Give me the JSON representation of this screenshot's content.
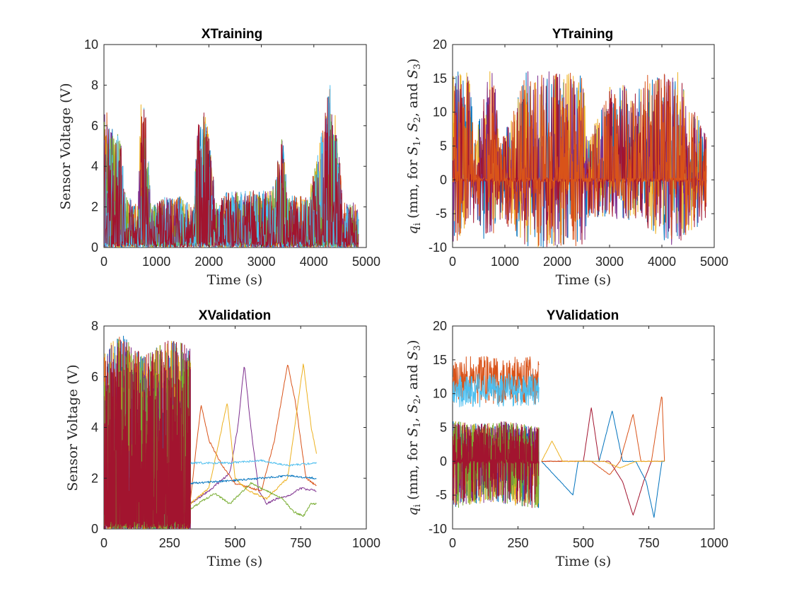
{
  "figure": {
    "background": "#ffffff"
  },
  "chart_data": [
    {
      "type": "line",
      "title": "XTraining",
      "xlabel": "Time (s)",
      "ylabel": "Sensor Voltage (V)",
      "xlim": [
        0,
        5000
      ],
      "ylim": [
        0,
        10
      ],
      "xticks": [
        0,
        1000,
        2000,
        3000,
        4000,
        5000
      ],
      "yticks": [
        0,
        2,
        4,
        6,
        8,
        10
      ],
      "grid": false,
      "legend": "none",
      "signal": {
        "xmin": 0,
        "xmax": 4850,
        "baseline": 0,
        "envelope": [
          [
            0,
            7.5
          ],
          [
            100,
            6.0
          ],
          [
            320,
            5.5
          ],
          [
            400,
            2.7
          ],
          [
            650,
            2.0
          ],
          [
            700,
            7.2
          ],
          [
            800,
            7.0
          ],
          [
            900,
            2.0
          ],
          [
            1150,
            2.5
          ],
          [
            1450,
            2.5
          ],
          [
            1700,
            2.0
          ],
          [
            1800,
            6.5
          ],
          [
            1950,
            6.8
          ],
          [
            2150,
            2.0
          ],
          [
            2300,
            2.7
          ],
          [
            2600,
            2.8
          ],
          [
            3200,
            2.8
          ],
          [
            3400,
            5.5
          ],
          [
            3500,
            2.6
          ],
          [
            3900,
            2.6
          ],
          [
            4100,
            5.0
          ],
          [
            4300,
            8.2
          ],
          [
            4450,
            6.0
          ],
          [
            4550,
            2.2
          ],
          [
            4850,
            2.2
          ]
        ]
      },
      "series": [
        {
          "color": "#0072BD"
        },
        {
          "color": "#D95319"
        },
        {
          "color": "#EDB120"
        },
        {
          "color": "#7E2F8E"
        },
        {
          "color": "#77AC30"
        },
        {
          "color": "#4DBEEE"
        },
        {
          "color": "#A2142F"
        }
      ]
    },
    {
      "type": "line",
      "title": "YTraining",
      "xlabel": "Time (s)",
      "ylabel_parts": [
        "q",
        "i",
        " (mm, for ",
        "S",
        "1",
        ", ",
        "S",
        "2",
        ", and ",
        "S",
        "3",
        ")"
      ],
      "xlim": [
        0,
        5000
      ],
      "ylim": [
        -10,
        20
      ],
      "xticks": [
        0,
        1000,
        2000,
        3000,
        4000,
        5000
      ],
      "yticks": [
        -10,
        -5,
        0,
        5,
        10,
        15,
        20
      ],
      "grid": false,
      "legend": "none",
      "signal": {
        "xmin": 0,
        "xmax": 4850,
        "baseline": 0,
        "envelope": [
          [
            0,
            16
          ],
          [
            350,
            16
          ],
          [
            400,
            5
          ],
          [
            700,
            16
          ],
          [
            800,
            16
          ],
          [
            900,
            5
          ],
          [
            1400,
            16
          ],
          [
            1600,
            16
          ],
          [
            2200,
            16
          ],
          [
            2500,
            16
          ],
          [
            2600,
            6
          ],
          [
            3000,
            14
          ],
          [
            3500,
            14
          ],
          [
            3800,
            16
          ],
          [
            4100,
            16
          ],
          [
            4300,
            16
          ],
          [
            4500,
            12
          ],
          [
            4850,
            7
          ]
        ],
        "low_envelope": [
          [
            0,
            -10
          ],
          [
            350,
            -6
          ],
          [
            700,
            -10
          ],
          [
            900,
            -6
          ],
          [
            1400,
            -10
          ],
          [
            2500,
            -10
          ],
          [
            2600,
            -6
          ],
          [
            3500,
            -6
          ],
          [
            4200,
            -10
          ],
          [
            4850,
            -6
          ]
        ]
      },
      "series": [
        {
          "color": "#0072BD"
        },
        {
          "color": "#EDB120"
        },
        {
          "color": "#7E2F8E"
        },
        {
          "color": "#A2142F"
        },
        {
          "color": "#D95319"
        }
      ]
    },
    {
      "type": "line",
      "title": "XValidation",
      "xlabel": "Time (s)",
      "ylabel": "Sensor Voltage (V)",
      "xlim": [
        0,
        1000
      ],
      "ylim": [
        0,
        8
      ],
      "xticks": [
        0,
        250,
        500,
        750,
        1000
      ],
      "yticks": [
        0,
        2,
        4,
        6,
        8
      ],
      "grid": false,
      "legend": "none",
      "signal": {
        "xmin": 0,
        "xmax": 330,
        "baseline": 0,
        "envelope": [
          [
            0,
            7.0
          ],
          [
            60,
            7.8
          ],
          [
            150,
            6.8
          ],
          [
            250,
            7.5
          ],
          [
            330,
            7.2
          ]
        ]
      },
      "smooth_series": [
        {
          "color": "#7E2F8E",
          "points": [
            [
              330,
              1.0
            ],
            [
              400,
              1.5
            ],
            [
              480,
              2.2
            ],
            [
              510,
              4.0
            ],
            [
              535,
              6.5
            ],
            [
              560,
              4.0
            ],
            [
              590,
              1.5
            ],
            [
              620,
              1.0
            ],
            [
              660,
              1.2
            ],
            [
              700,
              1.3
            ],
            [
              750,
              1.6
            ],
            [
              810,
              1.5
            ]
          ]
        },
        {
          "color": "#D95319",
          "points": [
            [
              330,
              1.2
            ],
            [
              370,
              4.9
            ],
            [
              400,
              3.5
            ],
            [
              450,
              2.5
            ],
            [
              500,
              1.8
            ],
            [
              600,
              1.5
            ],
            [
              650,
              3.5
            ],
            [
              700,
              6.5
            ],
            [
              730,
              5.0
            ],
            [
              770,
              2.0
            ],
            [
              810,
              1.7
            ]
          ]
        },
        {
          "color": "#EDB120",
          "points": [
            [
              330,
              1.0
            ],
            [
              400,
              1.6
            ],
            [
              470,
              5.0
            ],
            [
              500,
              2.0
            ],
            [
              550,
              1.5
            ],
            [
              620,
              1.2
            ],
            [
              700,
              2.0
            ],
            [
              760,
              6.5
            ],
            [
              790,
              4.0
            ],
            [
              810,
              3.0
            ]
          ]
        },
        {
          "color": "#77AC30",
          "points": [
            [
              330,
              0.8
            ],
            [
              420,
              1.4
            ],
            [
              480,
              1.0
            ],
            [
              560,
              1.8
            ],
            [
              620,
              1.5
            ],
            [
              680,
              1.2
            ],
            [
              720,
              0.7
            ],
            [
              760,
              0.5
            ],
            [
              790,
              1.0
            ],
            [
              810,
              1.0
            ]
          ]
        },
        {
          "color": "#4DBEEE",
          "points": [
            [
              330,
              2.6
            ],
            [
              480,
              2.6
            ],
            [
              600,
              2.7
            ],
            [
              700,
              2.5
            ],
            [
              810,
              2.6
            ]
          ]
        },
        {
          "color": "#0072BD",
          "points": [
            [
              330,
              1.8
            ],
            [
              480,
              1.9
            ],
            [
              600,
              2.0
            ],
            [
              700,
              2.1
            ],
            [
              810,
              2.0
            ]
          ]
        }
      ],
      "series": [
        {
          "color": "#0072BD"
        },
        {
          "color": "#D95319"
        },
        {
          "color": "#EDB120"
        },
        {
          "color": "#7E2F8E"
        },
        {
          "color": "#77AC30"
        },
        {
          "color": "#A2142F"
        }
      ]
    },
    {
      "type": "line",
      "title": "YValidation",
      "xlabel": "Time (s)",
      "ylabel_parts": [
        "q",
        "i",
        " (mm, for ",
        "S",
        "1",
        ", ",
        "S",
        "2",
        ", and ",
        "S",
        "3",
        ")"
      ],
      "xlim": [
        0,
        1000
      ],
      "ylim": [
        -10,
        20
      ],
      "xticks": [
        0,
        250,
        500,
        750,
        1000
      ],
      "yticks": [
        -10,
        -5,
        0,
        5,
        10,
        15,
        20
      ],
      "grid": false,
      "legend": "none",
      "signal": {
        "xmin": 0,
        "xmax": 330,
        "baseline": 0,
        "envelope": [
          [
            0,
            6
          ],
          [
            100,
            5.5
          ],
          [
            200,
            6
          ],
          [
            330,
            5
          ]
        ],
        "low_envelope": [
          [
            0,
            -7
          ],
          [
            150,
            -6
          ],
          [
            330,
            -7
          ]
        ]
      },
      "band_series": [
        {
          "color": "#D95319",
          "xmin": 0,
          "xmax": 330,
          "center": 12.0,
          "spread": 3.5
        },
        {
          "color": "#4DBEEE",
          "xmin": 0,
          "xmax": 330,
          "center": 10.5,
          "spread": 2.5
        }
      ],
      "smooth_series": [
        {
          "color": "#A2142F",
          "points": [
            [
              340,
              0
            ],
            [
              440,
              0
            ],
            [
              480,
              0
            ],
            [
              500,
              0
            ],
            [
              530,
              8.0
            ],
            [
              560,
              0
            ],
            [
              600,
              0
            ],
            [
              650,
              -3
            ],
            [
              690,
              -8.0
            ],
            [
              730,
              -3
            ],
            [
              760,
              0
            ],
            [
              810,
              0
            ]
          ]
        },
        {
          "color": "#0072BD",
          "points": [
            [
              340,
              0
            ],
            [
              460,
              -5
            ],
            [
              480,
              0
            ],
            [
              560,
              0
            ],
            [
              610,
              7.5
            ],
            [
              650,
              0
            ],
            [
              700,
              0
            ],
            [
              740,
              -3
            ],
            [
              770,
              -8.3
            ],
            [
              800,
              0
            ],
            [
              810,
              0
            ]
          ]
        },
        {
          "color": "#D95319",
          "points": [
            [
              340,
              0
            ],
            [
              470,
              0
            ],
            [
              530,
              0
            ],
            [
              600,
              -2
            ],
            [
              640,
              0
            ],
            [
              690,
              7.0
            ],
            [
              720,
              0
            ],
            [
              760,
              0
            ],
            [
              800,
              10
            ],
            [
              810,
              0
            ]
          ]
        },
        {
          "color": "#EDB120",
          "points": [
            [
              340,
              0
            ],
            [
              380,
              3
            ],
            [
              420,
              0
            ],
            [
              520,
              0
            ],
            [
              580,
              0
            ],
            [
              640,
              -1
            ],
            [
              700,
              0
            ],
            [
              810,
              0
            ]
          ]
        }
      ],
      "series": [
        {
          "color": "#0072BD"
        },
        {
          "color": "#EDB120"
        },
        {
          "color": "#7E2F8E"
        },
        {
          "color": "#77AC30"
        },
        {
          "color": "#A2142F"
        }
      ]
    }
  ]
}
